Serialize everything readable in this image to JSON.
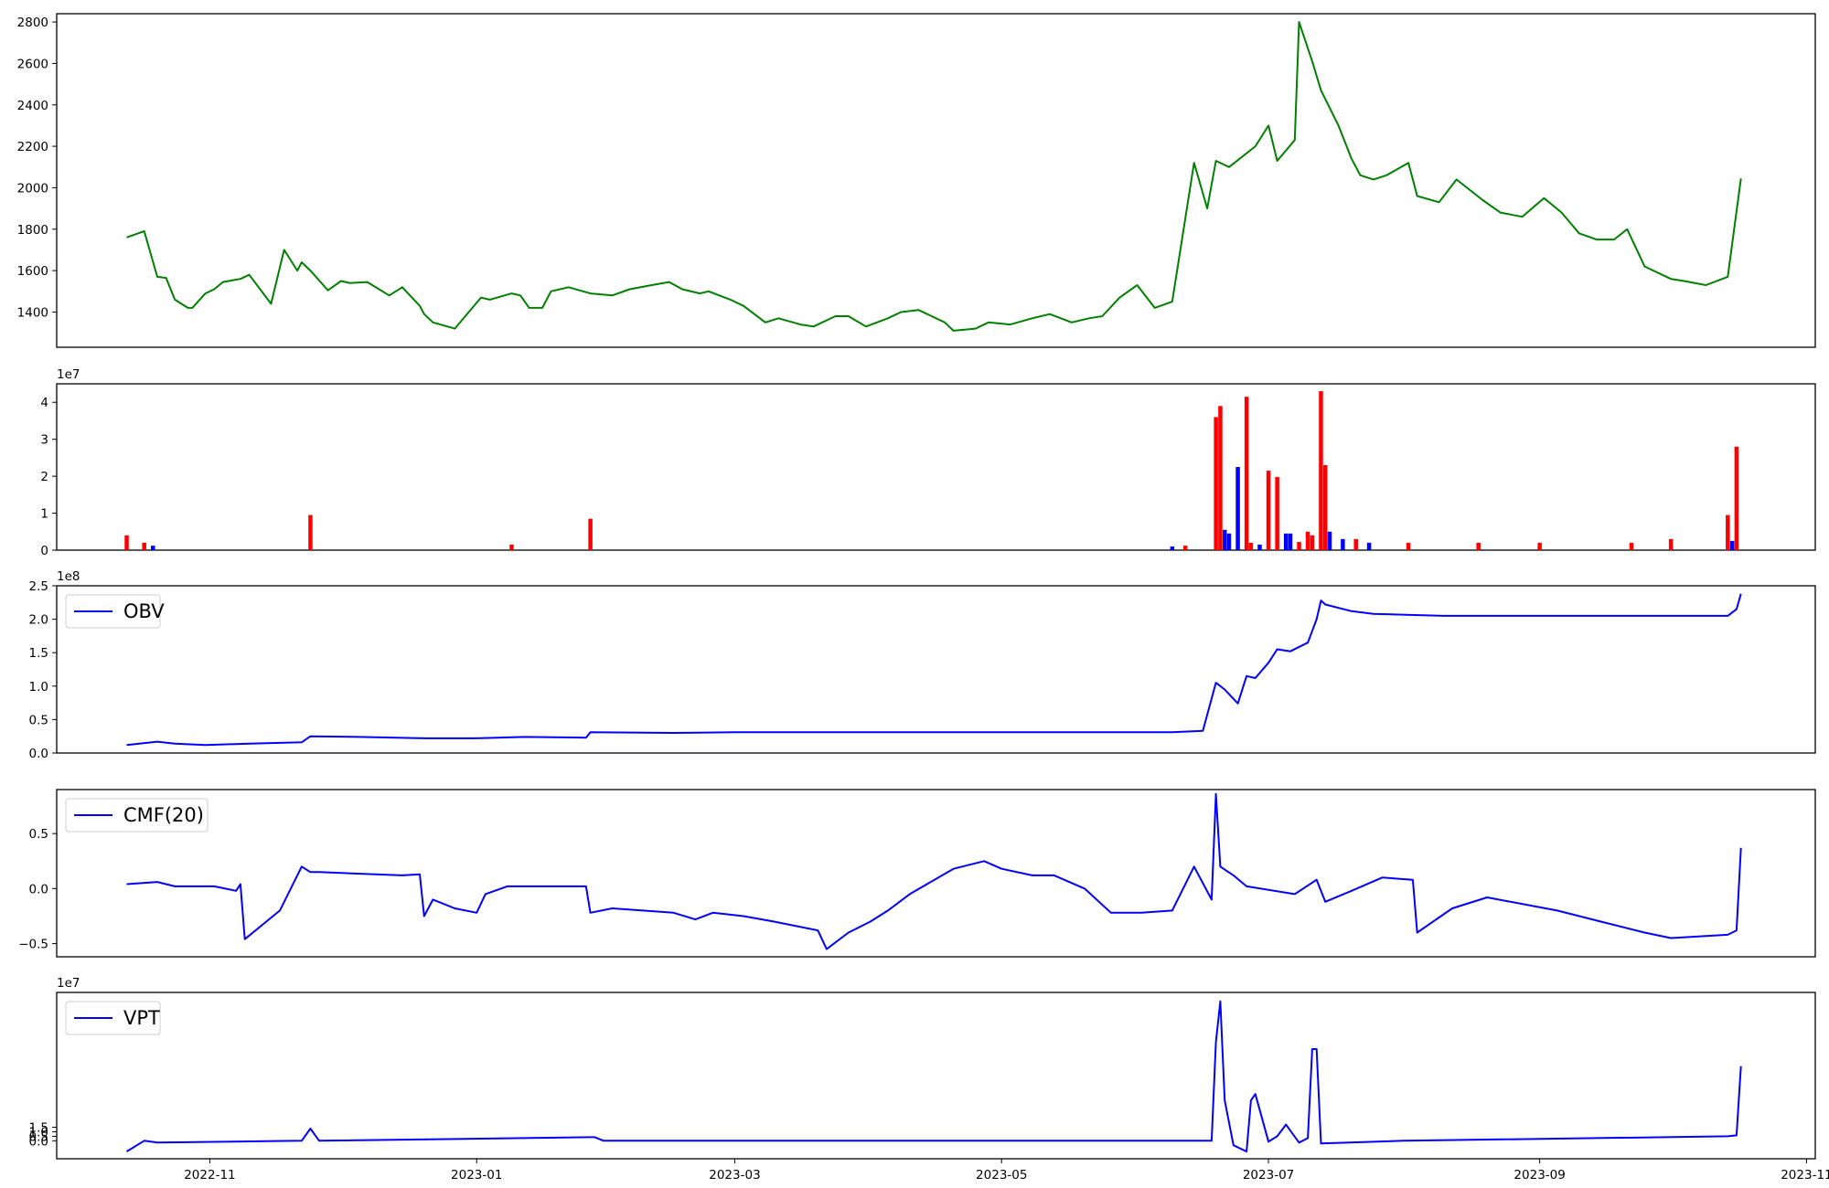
{
  "chart_data": [
    {
      "type": "line",
      "panel": "price",
      "title": "",
      "color": "#008000",
      "x_dates": [
        "2022-10-13",
        "2022-10-17",
        "2022-10-20",
        "2022-10-22",
        "2022-10-24",
        "2022-10-27",
        "2022-10-28",
        "2022-10-31",
        "2022-11-02",
        "2022-11-04",
        "2022-11-08",
        "2022-11-10",
        "2022-11-15",
        "2022-11-18",
        "2022-11-21",
        "2022-11-22",
        "2022-11-24",
        "2022-11-28",
        "2022-12-01",
        "2022-12-03",
        "2022-12-07",
        "2022-12-12",
        "2022-12-15",
        "2022-12-19",
        "2022-12-20",
        "2022-12-22",
        "2022-12-27",
        "2023-01-02",
        "2023-01-04",
        "2023-01-09",
        "2023-01-11",
        "2023-01-13",
        "2023-01-16",
        "2023-01-18",
        "2023-01-22",
        "2023-01-27",
        "2023-02-01",
        "2023-02-05",
        "2023-02-10",
        "2023-02-14",
        "2023-02-17",
        "2023-02-21",
        "2023-02-23",
        "2023-02-28",
        "2023-03-03",
        "2023-03-08",
        "2023-03-11",
        "2023-03-16",
        "2023-03-19",
        "2023-03-24",
        "2023-03-27",
        "2023-03-31",
        "2023-04-05",
        "2023-04-08",
        "2023-04-12",
        "2023-04-14",
        "2023-04-18",
        "2023-04-20",
        "2023-04-25",
        "2023-04-28",
        "2023-05-03",
        "2023-05-08",
        "2023-05-12",
        "2023-05-17",
        "2023-05-21",
        "2023-05-24",
        "2023-05-28",
        "2023-06-01",
        "2023-06-05",
        "2023-06-09",
        "2023-06-14",
        "2023-06-17",
        "2023-06-19",
        "2023-06-22",
        "2023-06-28",
        "2023-07-01",
        "2023-07-03",
        "2023-07-07",
        "2023-07-08",
        "2023-07-11",
        "2023-07-13",
        "2023-07-17",
        "2023-07-20",
        "2023-07-22",
        "2023-07-25",
        "2023-07-28",
        "2023-08-02",
        "2023-08-04",
        "2023-08-09",
        "2023-08-13",
        "2023-08-19",
        "2023-08-23",
        "2023-08-28",
        "2023-09-02",
        "2023-09-06",
        "2023-09-10",
        "2023-09-14",
        "2023-09-18",
        "2023-09-21",
        "2023-09-25",
        "2023-10-01",
        "2023-10-04",
        "2023-10-09",
        "2023-10-14",
        "2023-10-17"
      ],
      "values": [
        1760,
        1790,
        1570,
        1565,
        1460,
        1420,
        1420,
        1490,
        1510,
        1545,
        1560,
        1580,
        1440,
        1700,
        1600,
        1640,
        1600,
        1505,
        1550,
        1540,
        1545,
        1480,
        1520,
        1430,
        1390,
        1350,
        1320,
        1470,
        1460,
        1490,
        1480,
        1420,
        1420,
        1500,
        1520,
        1490,
        1480,
        1510,
        1530,
        1545,
        1510,
        1490,
        1500,
        1460,
        1430,
        1350,
        1370,
        1340,
        1330,
        1380,
        1380,
        1330,
        1370,
        1400,
        1410,
        1390,
        1350,
        1310,
        1320,
        1350,
        1340,
        1370,
        1390,
        1350,
        1370,
        1380,
        1470,
        1530,
        1420,
        1450,
        2120,
        1900,
        2130,
        2100,
        2200,
        2300,
        2130,
        2230,
        2800,
        2610,
        2470,
        2300,
        2140,
        2060,
        2040,
        2060,
        2120,
        1960,
        1930,
        2040,
        1940,
        1880,
        1860,
        1950,
        1880,
        1780,
        1750,
        1750,
        1800,
        1620,
        1560,
        1550,
        1530,
        1570,
        2045
      ],
      "ylim": [
        1230,
        2840
      ],
      "yticks": [
        "1400",
        "1600",
        "1800",
        "2000",
        "2200",
        "2400",
        "2600",
        "2800"
      ]
    },
    {
      "type": "bar",
      "panel": "volume",
      "offset_label": "1e7",
      "colors": {
        "up": "#ff0000",
        "down": "#0000ff"
      },
      "x_dates": [
        "2022-10-13",
        "2022-10-17",
        "2022-10-19",
        "2022-11-24",
        "2023-01-09",
        "2023-01-27",
        "2023-06-09",
        "2023-06-12",
        "2023-06-19",
        "2023-06-20",
        "2023-06-21",
        "2023-06-22",
        "2023-06-24",
        "2023-06-26",
        "2023-06-27",
        "2023-06-29",
        "2023-07-01",
        "2023-07-03",
        "2023-07-05",
        "2023-07-06",
        "2023-07-08",
        "2023-07-10",
        "2023-07-11",
        "2023-07-13",
        "2023-07-14",
        "2023-07-15",
        "2023-07-18",
        "2023-07-21",
        "2023-07-24",
        "2023-08-02",
        "2023-08-18",
        "2023-09-01",
        "2023-09-22",
        "2023-10-01",
        "2023-10-14",
        "2023-10-15",
        "2023-10-16"
      ],
      "values": [
        0.4,
        0.2,
        0.12,
        0.95,
        0.15,
        0.85,
        0.1,
        0.12,
        3.6,
        3.9,
        0.55,
        0.45,
        2.25,
        4.15,
        0.2,
        0.15,
        2.15,
        1.98,
        0.45,
        0.45,
        0.22,
        0.5,
        0.4,
        4.3,
        2.3,
        0.5,
        0.3,
        0.3,
        0.2,
        0.2,
        0.2,
        0.2,
        0.2,
        0.3,
        0.95,
        0.25,
        2.8
      ],
      "directions": [
        "up",
        "up",
        "down",
        "up",
        "up",
        "up",
        "down",
        "up",
        "up",
        "up",
        "down",
        "down",
        "down",
        "up",
        "up",
        "down",
        "up",
        "up",
        "down",
        "down",
        "up",
        "up",
        "up",
        "up",
        "up",
        "down",
        "down",
        "up",
        "down",
        "up",
        "up",
        "up",
        "up",
        "up",
        "up",
        "down",
        "up"
      ],
      "ylim": [
        0,
        4.5
      ],
      "yticks": [
        "0",
        "1",
        "2",
        "3",
        "4"
      ]
    },
    {
      "type": "line",
      "panel": "obv",
      "offset_label": "1e8",
      "series": [
        {
          "name": "OBV",
          "color": "#0000ff"
        }
      ],
      "x_dates": [
        "2022-10-13",
        "2022-10-20",
        "2022-10-24",
        "2022-10-31",
        "2022-11-10",
        "2022-11-22",
        "2022-11-24",
        "2022-12-05",
        "2022-12-20",
        "2023-01-01",
        "2023-01-12",
        "2023-01-26",
        "2023-01-27",
        "2023-02-15",
        "2023-03-01",
        "2023-04-01",
        "2023-05-15",
        "2023-06-09",
        "2023-06-16",
        "2023-06-19",
        "2023-06-21",
        "2023-06-24",
        "2023-06-26",
        "2023-06-28",
        "2023-07-01",
        "2023-07-03",
        "2023-07-06",
        "2023-07-10",
        "2023-07-12",
        "2023-07-13",
        "2023-07-14",
        "2023-07-20",
        "2023-07-25",
        "2023-08-10",
        "2023-09-20",
        "2023-10-14",
        "2023-10-16",
        "2023-10-17"
      ],
      "values": [
        0.12,
        0.17,
        0.14,
        0.12,
        0.14,
        0.16,
        0.25,
        0.24,
        0.22,
        0.22,
        0.24,
        0.23,
        0.31,
        0.3,
        0.31,
        0.31,
        0.31,
        0.31,
        0.33,
        1.05,
        0.95,
        0.74,
        1.15,
        1.12,
        1.35,
        1.55,
        1.52,
        1.65,
        2.0,
        2.28,
        2.22,
        2.12,
        2.08,
        2.05,
        2.05,
        2.05,
        2.15,
        2.38
      ],
      "ylim": [
        0,
        2.5
      ],
      "yticks": [
        "0.0",
        "0.5",
        "1.0",
        "1.5",
        "2.0",
        "2.5"
      ]
    },
    {
      "type": "line",
      "panel": "cmf",
      "series": [
        {
          "name": "CMF(20)",
          "color": "#0000ff"
        }
      ],
      "x_dates": [
        "2022-10-13",
        "2022-10-20",
        "2022-10-24",
        "2022-11-02",
        "2022-11-07",
        "2022-11-08",
        "2022-11-09",
        "2022-11-17",
        "2022-11-22",
        "2022-11-24",
        "2022-11-26",
        "2022-12-15",
        "2022-12-19",
        "2022-12-20",
        "2022-12-22",
        "2022-12-27",
        "2023-01-01",
        "2023-01-03",
        "2023-01-08",
        "2023-01-17",
        "2023-01-26",
        "2023-01-27",
        "2023-02-01",
        "2023-02-15",
        "2023-02-20",
        "2023-02-24",
        "2023-03-03",
        "2023-03-10",
        "2023-03-20",
        "2023-03-22",
        "2023-03-27",
        "2023-04-01",
        "2023-04-05",
        "2023-04-10",
        "2023-04-20",
        "2023-04-27",
        "2023-05-01",
        "2023-05-08",
        "2023-05-13",
        "2023-05-20",
        "2023-05-26",
        "2023-06-02",
        "2023-06-09",
        "2023-06-14",
        "2023-06-18",
        "2023-06-19",
        "2023-06-20",
        "2023-06-23",
        "2023-06-26",
        "2023-07-07",
        "2023-07-12",
        "2023-07-14",
        "2023-07-20",
        "2023-07-27",
        "2023-08-03",
        "2023-08-04",
        "2023-08-12",
        "2023-08-20",
        "2023-09-05",
        "2023-09-15",
        "2023-09-25",
        "2023-10-01",
        "2023-10-14",
        "2023-10-16",
        "2023-10-17"
      ],
      "values": [
        0.04,
        0.06,
        0.02,
        0.02,
        -0.02,
        0.04,
        -0.46,
        -0.2,
        0.2,
        0.15,
        0.15,
        0.12,
        0.13,
        -0.25,
        -0.1,
        -0.18,
        -0.22,
        -0.05,
        0.02,
        0.02,
        0.02,
        -0.22,
        -0.18,
        -0.22,
        -0.28,
        -0.22,
        -0.25,
        -0.3,
        -0.38,
        -0.55,
        -0.4,
        -0.3,
        -0.2,
        -0.05,
        0.18,
        0.25,
        0.18,
        0.12,
        0.12,
        0.0,
        -0.22,
        -0.22,
        -0.2,
        0.2,
        -0.1,
        0.86,
        0.2,
        0.12,
        0.02,
        -0.05,
        0.08,
        -0.12,
        -0.02,
        0.1,
        0.08,
        -0.4,
        -0.18,
        -0.08,
        -0.2,
        -0.3,
        -0.4,
        -0.45,
        -0.42,
        -0.38,
        0.37
      ],
      "ylim": [
        -0.62,
        0.9
      ],
      "yticks": [
        "−0.5",
        "0.0",
        "0.5"
      ]
    },
    {
      "type": "line",
      "panel": "vpt",
      "offset_label": "1e7",
      "series": [
        {
          "name": "VPT",
          "color": "#0000ff"
        }
      ],
      "x_dates": [
        "2022-10-13",
        "2022-10-17",
        "2022-10-20",
        "2022-11-22",
        "2022-11-24",
        "2022-11-26",
        "2023-01-27",
        "2023-01-28",
        "2023-01-30",
        "2023-06-18",
        "2023-06-19",
        "2023-06-20",
        "2023-06-21",
        "2023-06-23",
        "2023-06-26",
        "2023-06-27",
        "2023-06-28",
        "2023-07-01",
        "2023-07-03",
        "2023-07-05",
        "2023-07-08",
        "2023-07-10",
        "2023-07-11",
        "2023-07-12",
        "2023-07-13",
        "2023-08-01",
        "2023-10-14",
        "2023-10-16",
        "2023-10-17"
      ],
      "values": [
        -1.2,
        0.0,
        -0.2,
        0.0,
        1.35,
        0.0,
        0.4,
        0.4,
        0.0,
        0.0,
        11.0,
        15.5,
        4.5,
        -0.5,
        -1.2,
        4.5,
        5.2,
        -0.1,
        0.5,
        1.8,
        -0.2,
        0.3,
        10.2,
        10.2,
        -0.3,
        0.0,
        0.5,
        0.6,
        8.3
      ],
      "ylim": [
        -2.0,
        16.5
      ],
      "yticks": [
        "0.0",
        "0.5",
        "1.0",
        "1.5"
      ]
    }
  ],
  "x_axis": {
    "range": [
      "2022-09-27",
      "2023-11-03"
    ],
    "ticks": [
      {
        "date": "2022-11-01",
        "label": "2022-11"
      },
      {
        "date": "2023-01-01",
        "label": "2023-01"
      },
      {
        "date": "2023-03-01",
        "label": "2023-03"
      },
      {
        "date": "2023-05-01",
        "label": "2023-05"
      },
      {
        "date": "2023-07-01",
        "label": "2023-07"
      },
      {
        "date": "2023-09-01",
        "label": "2023-09"
      },
      {
        "date": "2023-11-01",
        "label": "2023-11"
      }
    ]
  }
}
